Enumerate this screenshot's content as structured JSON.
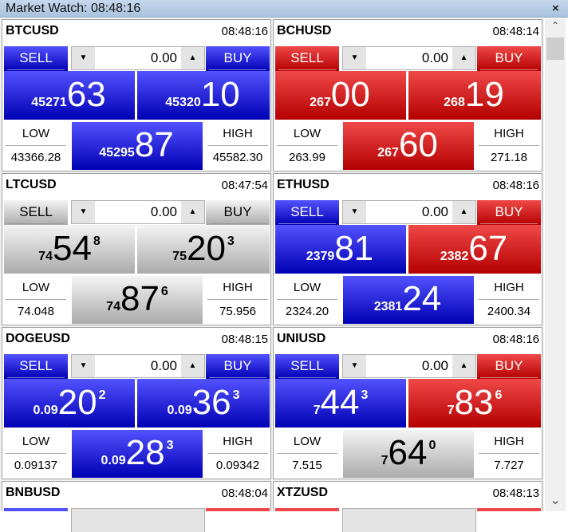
{
  "window": {
    "title": "Market Watch: 08:48:16",
    "close": "×"
  },
  "labels": {
    "sell": "SELL",
    "buy": "BUY",
    "low": "LOW",
    "high": "HIGH",
    "down": "▼",
    "up": "▲"
  },
  "colors": {
    "blue": "#0000b4",
    "red": "#b40000",
    "gray": "#ababab"
  },
  "panels": [
    {
      "symbol": "BTCUSD",
      "time": "08:48:16",
      "lot": "0.00",
      "sell_color": "blue",
      "buy_color": "blue",
      "mid_color": "blue",
      "sell": {
        "pre": "45271",
        "big": "63",
        "sup": ""
      },
      "buy": {
        "pre": "45320",
        "big": "10",
        "sup": ""
      },
      "mid": {
        "pre": "45295",
        "big": "87",
        "sup": ""
      },
      "low": "43366.28",
      "high": "45582.30"
    },
    {
      "symbol": "BCHUSD",
      "time": "08:48:14",
      "lot": "0.00",
      "sell_color": "red",
      "buy_color": "red",
      "mid_color": "red",
      "sell": {
        "pre": "267",
        "big": "00",
        "sup": ""
      },
      "buy": {
        "pre": "268",
        "big": "19",
        "sup": ""
      },
      "mid": {
        "pre": "267",
        "big": "60",
        "sup": ""
      },
      "low": "263.99",
      "high": "271.18"
    },
    {
      "symbol": "LTCUSD",
      "time": "08:47:54",
      "lot": "0.00",
      "sell_color": "gray",
      "buy_color": "gray",
      "mid_color": "gray",
      "sell": {
        "pre": "74",
        "big": "54",
        "sup": "8"
      },
      "buy": {
        "pre": "75",
        "big": "20",
        "sup": "3"
      },
      "mid": {
        "pre": "74",
        "big": "87",
        "sup": "6"
      },
      "low": "74.048",
      "high": "75.956"
    },
    {
      "symbol": "ETHUSD",
      "time": "08:48:16",
      "lot": "0.00",
      "sell_color": "blue",
      "buy_color": "red",
      "mid_color": "blue",
      "sell": {
        "pre": "2379",
        "big": "81",
        "sup": ""
      },
      "buy": {
        "pre": "2382",
        "big": "67",
        "sup": ""
      },
      "mid": {
        "pre": "2381",
        "big": "24",
        "sup": ""
      },
      "low": "2324.20",
      "high": "2400.34"
    },
    {
      "symbol": "DOGEUSD",
      "time": "08:48:15",
      "lot": "0.00",
      "sell_color": "blue",
      "buy_color": "blue",
      "mid_color": "blue",
      "sell": {
        "pre": "0.09",
        "big": "20",
        "sup": "2"
      },
      "buy": {
        "pre": "0.09",
        "big": "36",
        "sup": "3"
      },
      "mid": {
        "pre": "0.09",
        "big": "28",
        "sup": "3"
      },
      "low": "0.09137",
      "high": "0.09342"
    },
    {
      "symbol": "UNIUSD",
      "time": "08:48:16",
      "lot": "0.00",
      "sell_color": "blue",
      "buy_color": "red",
      "mid_color": "gray",
      "sell": {
        "pre": "7",
        "big": "44",
        "sup": "3"
      },
      "buy": {
        "pre": "7",
        "big": "83",
        "sup": "6"
      },
      "mid": {
        "pre": "7",
        "big": "64",
        "sup": "0"
      },
      "low": "7.515",
      "high": "7.727"
    },
    {
      "symbol": "BNBUSD",
      "time": "08:48:04",
      "lot": "",
      "sell_color": "blue",
      "buy_color": "red",
      "mid_color": "gray",
      "sell": {
        "pre": "",
        "big": "",
        "sup": ""
      },
      "buy": {
        "pre": "",
        "big": "",
        "sup": ""
      },
      "mid": {
        "pre": "",
        "big": "",
        "sup": ""
      },
      "low": "",
      "high": ""
    },
    {
      "symbol": "XTZUSD",
      "time": "08:48:13",
      "lot": "",
      "sell_color": "red",
      "buy_color": "red",
      "mid_color": "gray",
      "sell": {
        "pre": "",
        "big": "",
        "sup": ""
      },
      "buy": {
        "pre": "",
        "big": "",
        "sup": ""
      },
      "mid": {
        "pre": "",
        "big": "",
        "sup": ""
      },
      "low": "",
      "high": ""
    }
  ],
  "scrollbar": {
    "up": "⌃",
    "down": "⌄"
  }
}
